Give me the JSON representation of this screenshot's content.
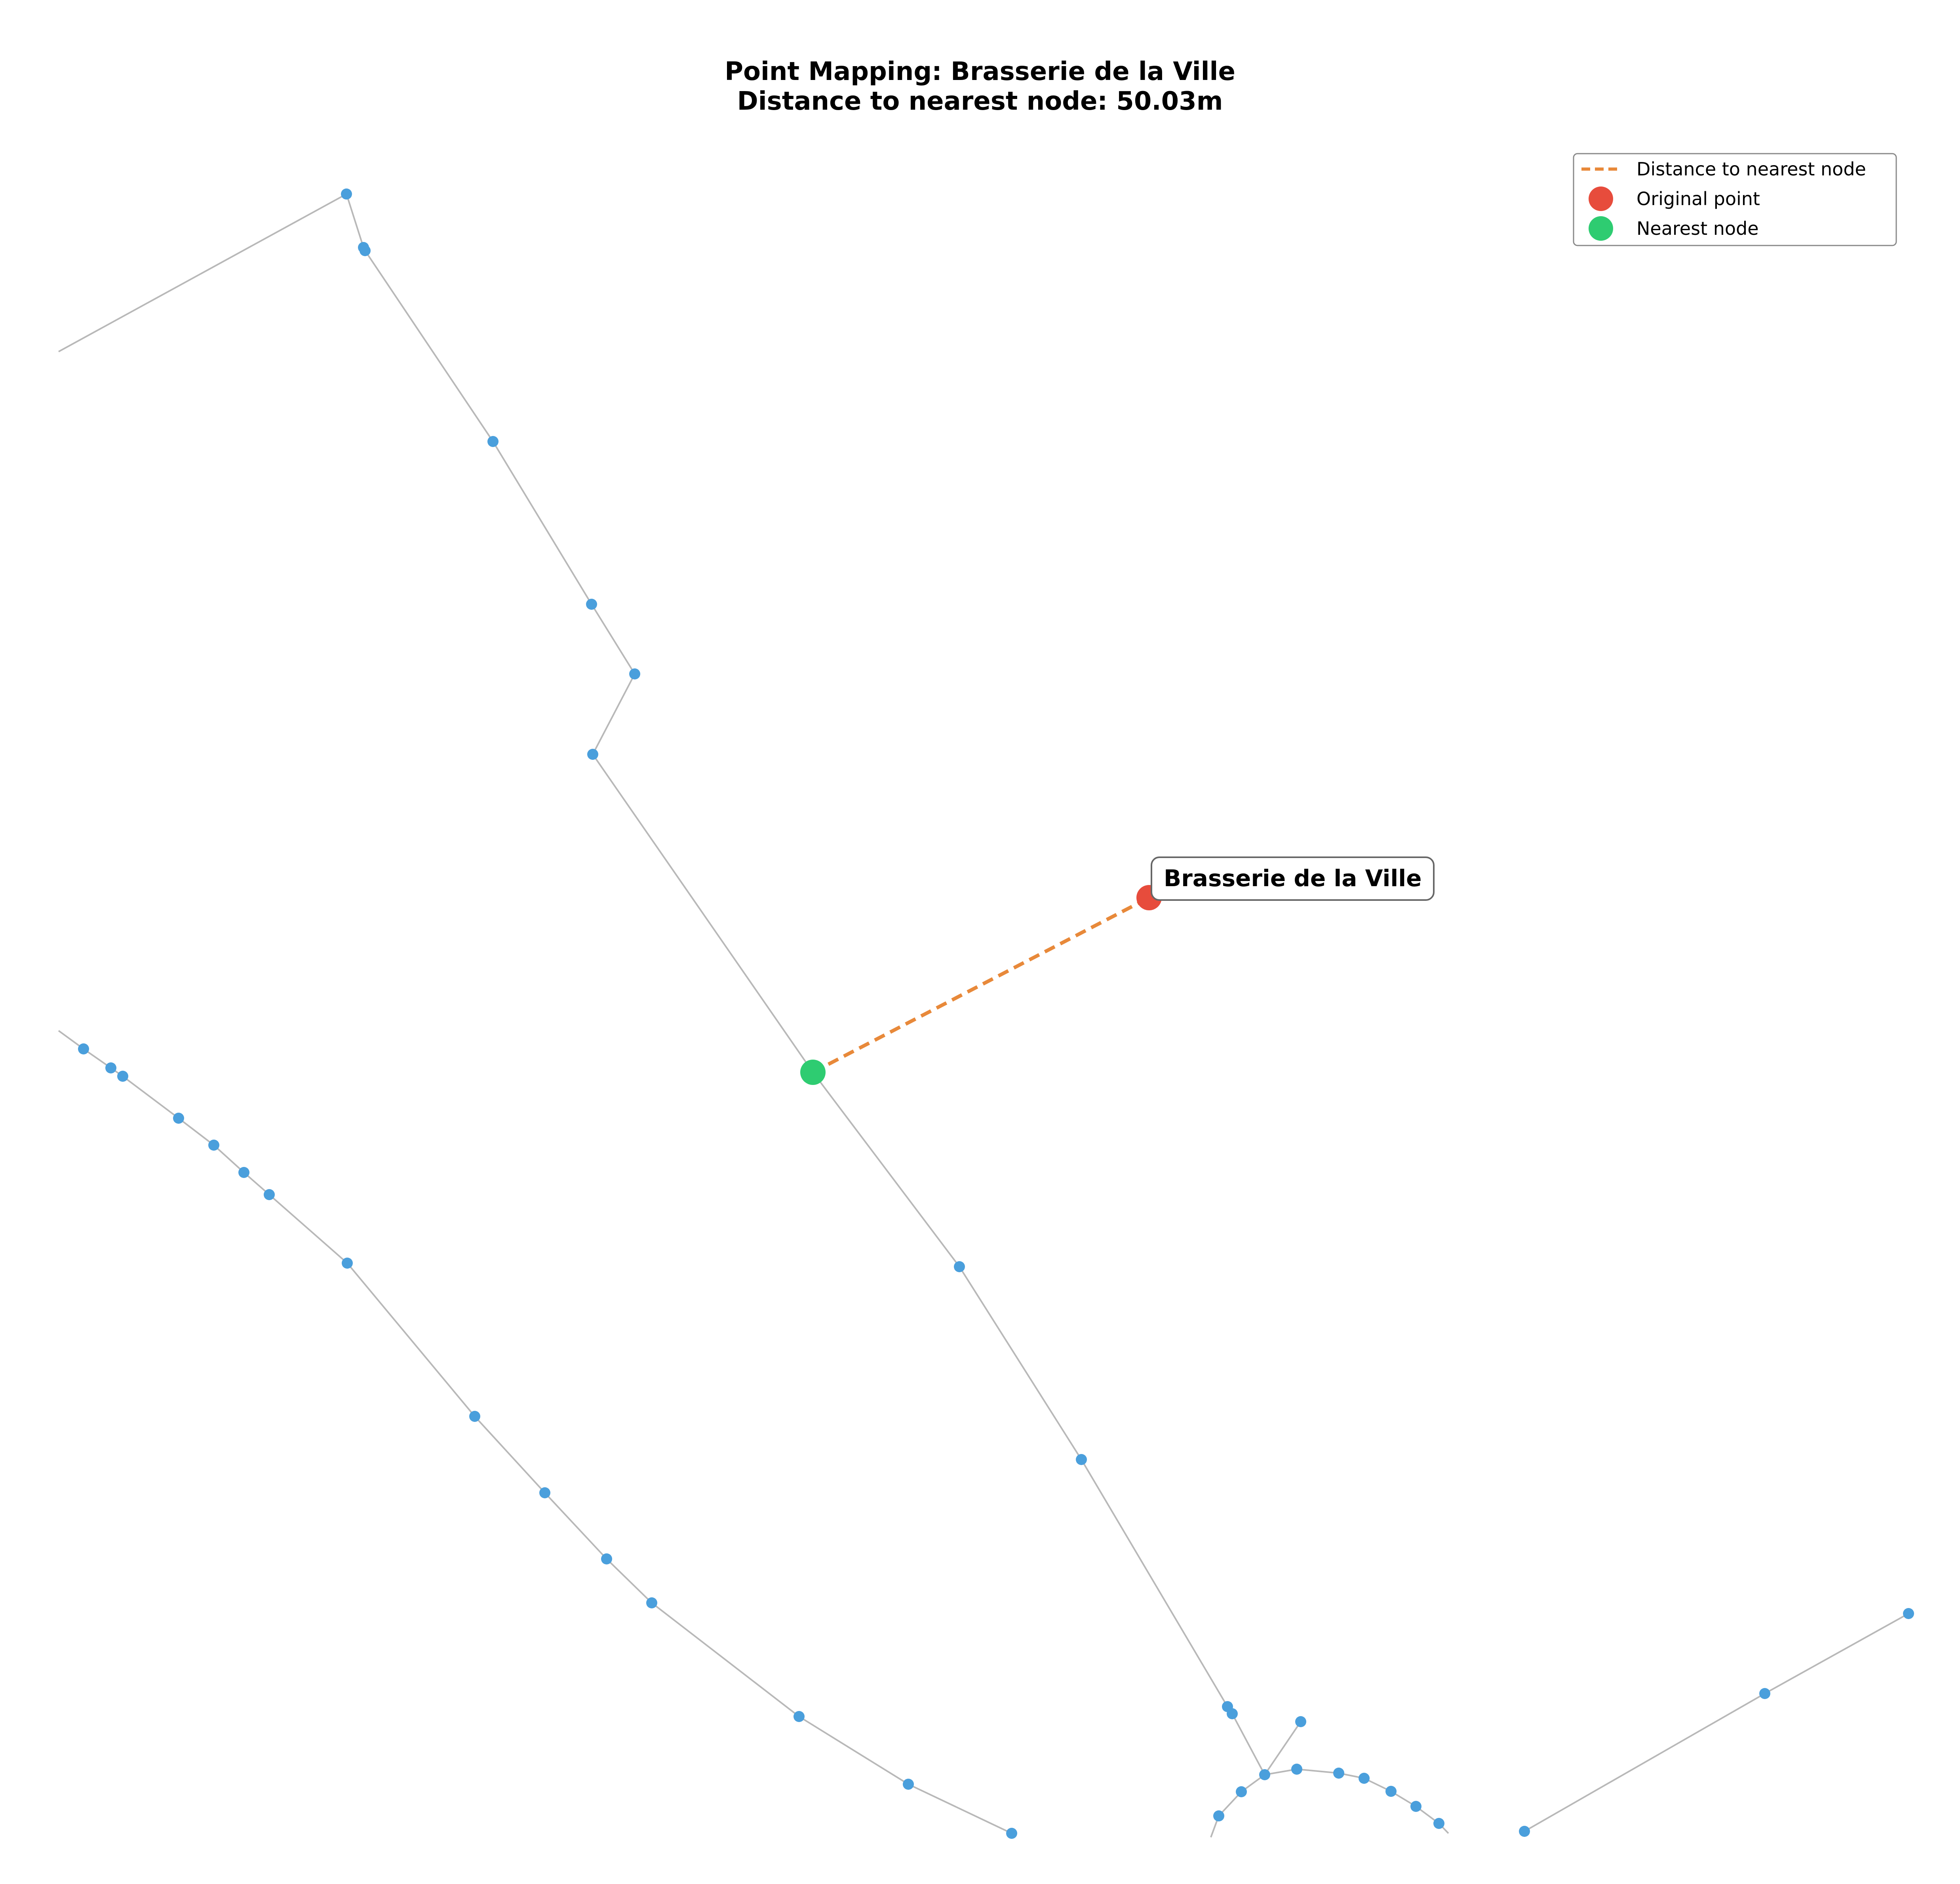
{
  "title": {
    "line1": "Point Mapping: Brasserie de la Ville",
    "line2": "Distance to nearest node: 50.03m"
  },
  "legend": {
    "position": "top-right",
    "items": [
      {
        "label": "Distance to nearest node",
        "kind": "dashed-line",
        "color": "#e8893a"
      },
      {
        "label": "Original point",
        "kind": "marker",
        "color": "#e74c3c"
      },
      {
        "label": "Nearest node",
        "kind": "marker",
        "color": "#2ecc71"
      }
    ]
  },
  "colors": {
    "node": "#4a9fdc",
    "edge": "#b8b8b8",
    "original_point": "#e74c3c",
    "nearest_node": "#2ecc71",
    "distance_line": "#e8893a"
  },
  "place_label": "Brasserie de la Ville",
  "distance_m": 50.03,
  "axes_visible": false
}
